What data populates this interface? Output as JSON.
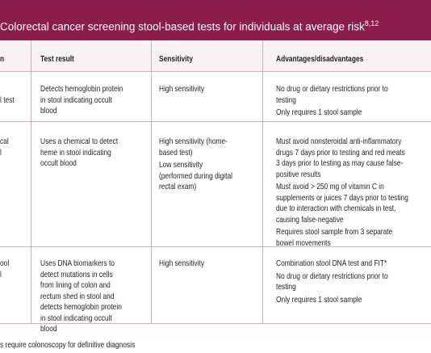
{
  "table": {
    "title": "Colorectal cancer screening stool-based tests for individuals at average risk",
    "title_sup": "8,12",
    "header": [
      "n",
      "Test result",
      "Sensitivity",
      "Advantages/disadvantages"
    ],
    "rows": [
      [
        [
          [
            "l test"
          ]
        ],
        [
          [
            "Detects hemoglobin protein",
            "in stool indicating occult",
            "blood"
          ]
        ],
        [
          [
            "High sensitivity"
          ]
        ],
        [
          [
            "No drug or dietary restrictions prior to",
            "testing"
          ],
          [
            "Only requires 1 stool sample"
          ]
        ]
      ],
      [
        [
          [
            "cal",
            "l"
          ]
        ],
        [
          [
            "Uses a chemical to detect",
            "heme in stool indicating",
            "occult blood"
          ]
        ],
        [
          [
            "High sensitivity (home-",
            "based test)"
          ],
          [
            "Low sensitivity",
            "(performed during digital",
            "rectal exam)"
          ]
        ],
        [
          [
            "Must avoid nonsteroidal anti-inflammatory",
            "drugs 7 days prior to testing and red meats",
            "3 days prior to testing as may cause false-",
            "positive results"
          ],
          [
            "Must avoid > 250 mg of vitamin C in",
            "supplements or juices 7 days prior to testing",
            "due to interaction with chemicals in test,",
            "causing false-negative"
          ],
          [
            "Requires stool sample from 3 separate",
            "bowel movements"
          ]
        ]
      ],
      [
        [
          [
            "ool",
            "l"
          ]
        ],
        [
          [
            "Uses DNA biomarkers to",
            "detect mutations  in cells",
            "from lining of colon and",
            "rectum shed  in stool and",
            "detects hemoglobin protein",
            "in stool indicating occult",
            "blood"
          ]
        ],
        [
          [
            "High sensitivity"
          ]
        ],
        [
          [
            "Combination stool DNA test and FIT*"
          ],
          [
            "No drug or dietary restrictions prior to",
            "testing"
          ],
          [
            "Only requires 1 stool sample"
          ]
        ]
      ]
    ],
    "footnote": "s require colonoscopy for definitive diagnosis"
  }
}
